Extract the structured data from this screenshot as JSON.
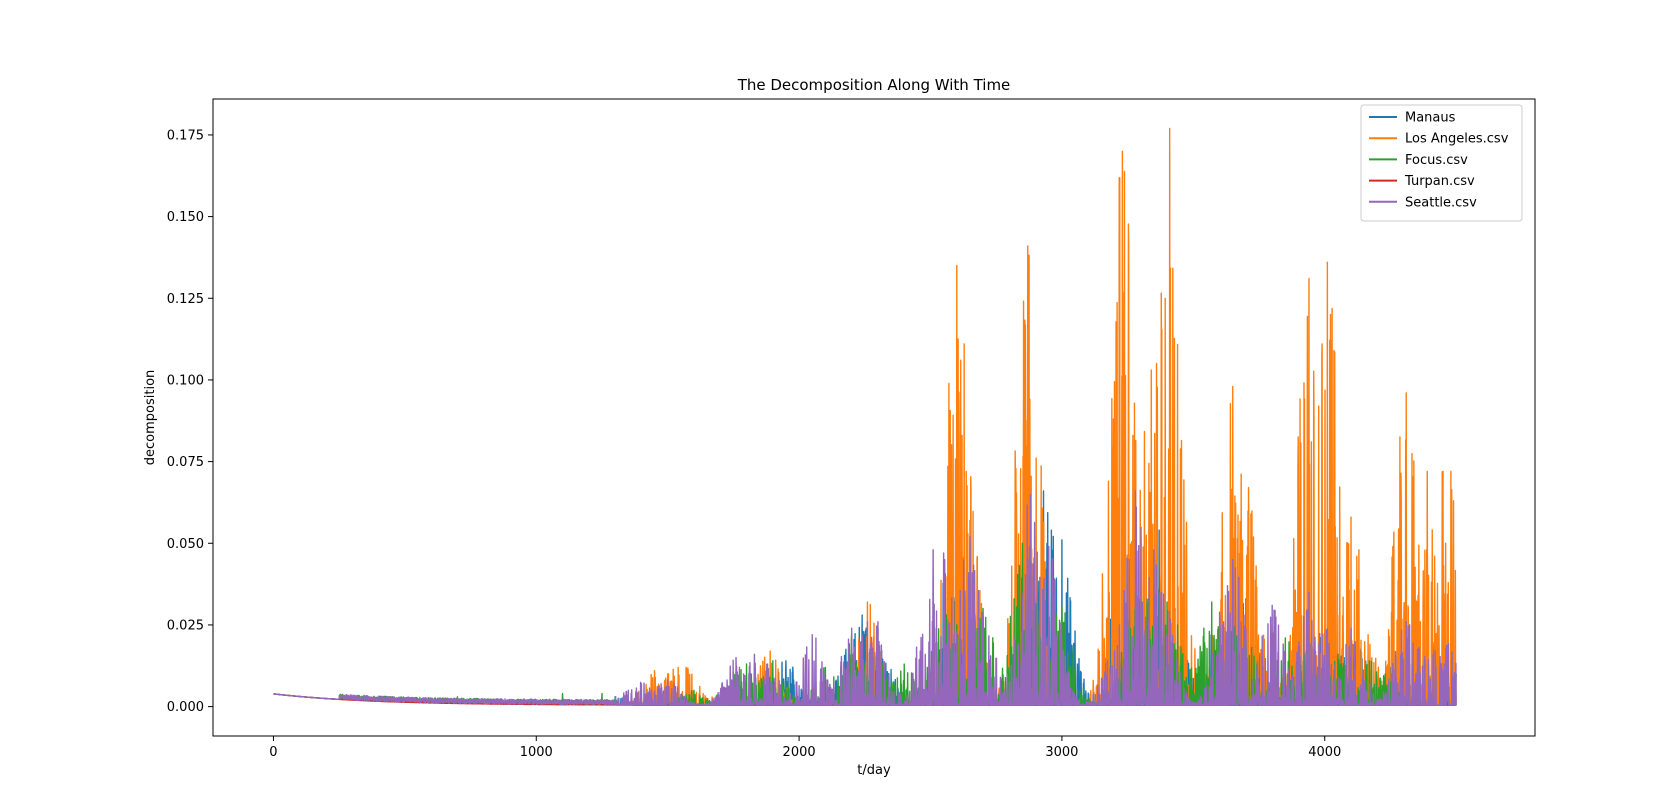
{
  "chart_data": {
    "type": "line",
    "title": "The Decomposition Along With Time",
    "xlabel": "t/day",
    "ylabel": "decomposition",
    "xlim": [
      -230,
      4800
    ],
    "ylim": [
      -0.009,
      0.186
    ],
    "xticks": [
      0,
      1000,
      2000,
      3000,
      4000
    ],
    "yticks": [
      0.0,
      0.025,
      0.05,
      0.075,
      0.1,
      0.125,
      0.15,
      0.175
    ],
    "xtick_labels": [
      "0",
      "1000",
      "2000",
      "3000",
      "4000"
    ],
    "ytick_labels": [
      "0.000",
      "0.025",
      "0.050",
      "0.075",
      "0.100",
      "0.125",
      "0.150",
      "0.175"
    ],
    "legend_position": "top-right",
    "series": [
      {
        "name": "Manaus",
        "color": "#1f77b4",
        "peaks": [
          [
            1300,
            0.003
          ],
          [
            1500,
            0.005
          ],
          [
            1750,
            0.007
          ],
          [
            1900,
            0.01
          ],
          [
            1950,
            0.014
          ],
          [
            2200,
            0.02
          ],
          [
            2240,
            0.028
          ],
          [
            2300,
            0.024
          ],
          [
            2580,
            0.051
          ],
          [
            2640,
            0.047
          ],
          [
            2870,
            0.04
          ],
          [
            2930,
            0.066
          ],
          [
            2960,
            0.054
          ],
          [
            3000,
            0.051
          ],
          [
            3220,
            0.039
          ],
          [
            3370,
            0.054
          ],
          [
            3430,
            0.03
          ],
          [
            3570,
            0.023
          ],
          [
            3700,
            0.033
          ],
          [
            3900,
            0.02
          ],
          [
            4000,
            0.023
          ],
          [
            4070,
            0.023
          ],
          [
            4120,
            0.02
          ],
          [
            4250,
            0.012
          ],
          [
            4350,
            0.019
          ],
          [
            4420,
            0.02
          ],
          [
            4500,
            0.01
          ]
        ]
      },
      {
        "name": "Los Angeles.csv",
        "color": "#ff7f0e",
        "peaks": [
          [
            1450,
            0.011
          ],
          [
            1500,
            0.01
          ],
          [
            1540,
            0.012
          ],
          [
            1570,
            0.012
          ],
          [
            1710,
            0.004
          ],
          [
            1890,
            0.017
          ],
          [
            2260,
            0.032
          ],
          [
            2600,
            0.135
          ],
          [
            2615,
            0.106
          ],
          [
            2620,
            0.083
          ],
          [
            2650,
            0.057
          ],
          [
            2870,
            0.141
          ],
          [
            3230,
            0.17
          ],
          [
            3270,
            0.083
          ],
          [
            3340,
            0.103
          ],
          [
            3360,
            0.105
          ],
          [
            3390,
            0.064
          ],
          [
            3410,
            0.177
          ],
          [
            3650,
            0.098
          ],
          [
            3710,
            0.067
          ],
          [
            3940,
            0.131
          ],
          [
            3990,
            0.111
          ],
          [
            4010,
            0.136
          ],
          [
            4025,
            0.086
          ],
          [
            4040,
            0.055
          ],
          [
            4100,
            0.058
          ],
          [
            4130,
            0.048
          ],
          [
            4310,
            0.096
          ],
          [
            4390,
            0.072
          ],
          [
            4450,
            0.072
          ],
          [
            4460,
            0.05
          ],
          [
            4480,
            0.072
          ],
          [
            4490,
            0.063
          ]
        ]
      },
      {
        "name": "Focus.csv",
        "color": "#2ca02c",
        "peaks": [
          [
            700,
            0.003
          ],
          [
            1100,
            0.004
          ],
          [
            1250,
            0.004
          ],
          [
            1600,
            0.005
          ],
          [
            1750,
            0.01
          ],
          [
            1800,
            0.013
          ],
          [
            1900,
            0.014
          ],
          [
            2100,
            0.012
          ],
          [
            2200,
            0.022
          ],
          [
            2300,
            0.014
          ],
          [
            2400,
            0.013
          ],
          [
            2550,
            0.03
          ],
          [
            2600,
            0.025
          ],
          [
            2700,
            0.03
          ],
          [
            2850,
            0.05
          ],
          [
            2880,
            0.049
          ],
          [
            3000,
            0.031
          ],
          [
            3200,
            0.005
          ],
          [
            3280,
            0.035
          ],
          [
            3330,
            0.033
          ],
          [
            3400,
            0.032
          ],
          [
            3440,
            0.025
          ],
          [
            3570,
            0.032
          ],
          [
            3650,
            0.028
          ],
          [
            3700,
            0.02
          ],
          [
            3850,
            0.021
          ],
          [
            3930,
            0.017
          ],
          [
            4050,
            0.016
          ],
          [
            4170,
            0.014
          ],
          [
            4230,
            0.01
          ]
        ]
      },
      {
        "name": "Turpan.csv",
        "color": "#d62728",
        "peaks": [
          [
            1000,
            0.001
          ],
          [
            2000,
            0.001
          ],
          [
            3000,
            0.001
          ],
          [
            4000,
            0.001
          ]
        ]
      },
      {
        "name": "Seattle.csv",
        "color": "#9467bd",
        "peaks": [
          [
            1350,
            0.005
          ],
          [
            1400,
            0.007
          ],
          [
            1500,
            0.008
          ],
          [
            1760,
            0.015
          ],
          [
            1830,
            0.016
          ],
          [
            1880,
            0.013
          ],
          [
            2050,
            0.022
          ],
          [
            2200,
            0.024
          ],
          [
            2260,
            0.026
          ],
          [
            2300,
            0.026
          ],
          [
            2480,
            0.016
          ],
          [
            2510,
            0.048
          ],
          [
            2550,
            0.047
          ],
          [
            2650,
            0.052
          ],
          [
            2700,
            0.028
          ],
          [
            2880,
            0.065
          ],
          [
            2950,
            0.049
          ],
          [
            3200,
            0.017
          ],
          [
            3280,
            0.066
          ],
          [
            3350,
            0.048
          ],
          [
            3380,
            0.035
          ],
          [
            3630,
            0.037
          ],
          [
            3650,
            0.045
          ],
          [
            3800,
            0.031
          ],
          [
            3940,
            0.035
          ],
          [
            4010,
            0.024
          ],
          [
            4100,
            0.024
          ],
          [
            4310,
            0.026
          ],
          [
            4360,
            0.018
          ],
          [
            4420,
            0.017
          ],
          [
            4470,
            0.019
          ]
        ]
      }
    ]
  }
}
